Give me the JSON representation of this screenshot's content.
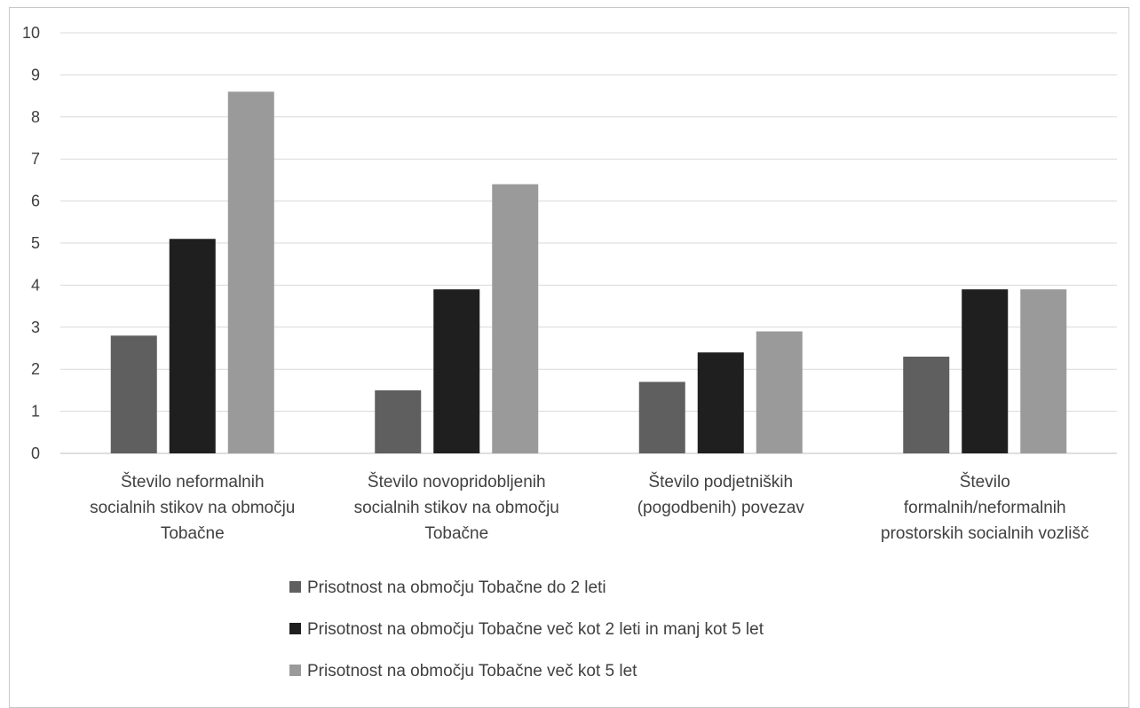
{
  "chart_data": {
    "type": "bar",
    "title": "",
    "xlabel": "",
    "ylabel": "",
    "ylim": [
      0,
      10
    ],
    "yticks": [
      "0",
      "1",
      "2",
      "3",
      "4",
      "5",
      "6",
      "7",
      "8",
      "9",
      "10"
    ],
    "grid": true,
    "legend_position": "bottom",
    "categories": [
      [
        "Število neformalnih",
        "socialnih stikov na območju",
        "Tobačne"
      ],
      [
        "Število novopridobljenih",
        "socialnih stikov na območju",
        "Tobačne"
      ],
      [
        "Število podjetniških",
        "(pogodbenih) povezav"
      ],
      [
        "Število",
        "formalnih/neformalnih",
        "prostorskih socialnih vozlišč"
      ]
    ],
    "series": [
      {
        "name": "Prisotnost na območju Tobačne do 2 leti",
        "color": "#5f5f5f",
        "values": [
          2.8,
          1.5,
          1.7,
          2.3
        ]
      },
      {
        "name": "Prisotnost na območju Tobačne več kot 2 leti in manj kot 5 let",
        "color": "#1f1f1f",
        "values": [
          5.1,
          3.9,
          2.4,
          3.9
        ]
      },
      {
        "name": "Prisotnost na območju Tobačne več kot 5 let",
        "color": "#9a9a9a",
        "values": [
          8.6,
          6.4,
          2.9,
          3.9
        ]
      }
    ]
  }
}
